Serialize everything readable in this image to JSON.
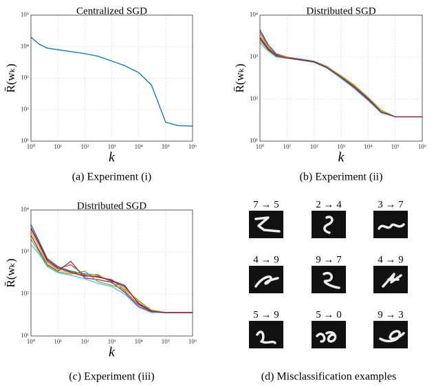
{
  "chart_data": [
    {
      "type": "line",
      "title": "Centralized SGD",
      "caption": "(a) Experiment (i)",
      "xlabel": "k",
      "ylabel": "R̄(wₖ)",
      "log_x": true,
      "log_y": true,
      "grid": true,
      "xlim": [
        1,
        1000000
      ],
      "ylim": [
        10,
        100000
      ],
      "xticks": [
        {
          "value": 1,
          "label": "10⁰"
        },
        {
          "value": 10,
          "label": "10¹"
        },
        {
          "value": 100,
          "label": "10²"
        },
        {
          "value": 1000,
          "label": "10³"
        },
        {
          "value": 10000,
          "label": "10⁴"
        },
        {
          "value": 100000,
          "label": "10⁵"
        },
        {
          "value": 1000000,
          "label": "10⁶"
        }
      ],
      "yticks": [
        {
          "value": 10,
          "label": "10¹"
        },
        {
          "value": 100,
          "label": "10²"
        },
        {
          "value": 1000,
          "label": "10³"
        },
        {
          "value": 10000,
          "label": "10⁴"
        },
        {
          "value": 100000,
          "label": "10⁵"
        }
      ],
      "x": [
        1,
        2,
        4,
        10,
        30,
        100,
        300,
        1000,
        3000,
        10000,
        30000,
        100000,
        300000,
        1000000
      ],
      "color": "#0072bd",
      "values": [
        20000,
        12000,
        9000,
        8000,
        7000,
        6000,
        5000,
        3500,
        2500,
        1500,
        600,
        40,
        31,
        30
      ]
    },
    {
      "type": "line",
      "title": "Distributed SGD",
      "caption": "(b) Experiment (ii)",
      "xlabel": "k",
      "ylabel": "R̄(wₖ)",
      "log_x": true,
      "log_y": true,
      "grid": true,
      "xlim": [
        1,
        1000000
      ],
      "ylim": [
        10,
        10000
      ],
      "xticks": [
        {
          "value": 1,
          "label": "10⁰"
        },
        {
          "value": 10,
          "label": "10¹"
        },
        {
          "value": 100,
          "label": "10²"
        },
        {
          "value": 1000,
          "label": "10³"
        },
        {
          "value": 10000,
          "label": "10⁴"
        },
        {
          "value": 100000,
          "label": "10⁵"
        },
        {
          "value": 1000000,
          "label": "10⁶"
        }
      ],
      "yticks": [
        {
          "value": 10,
          "label": "10¹"
        },
        {
          "value": 100,
          "label": "10²"
        },
        {
          "value": 1000,
          "label": "10³"
        },
        {
          "value": 10000,
          "label": "10⁴"
        }
      ],
      "x": [
        1,
        2,
        4,
        10,
        30,
        100,
        300,
        1000,
        3000,
        10000,
        30000,
        100000,
        300000,
        1000000
      ],
      "series": [
        {
          "color": "#0072bd",
          "values": [
            4500,
            2000,
            1200,
            1000,
            900,
            800,
            600,
            350,
            200,
            100,
            50,
            38,
            38,
            38
          ]
        },
        {
          "color": "#d95319",
          "values": [
            4000,
            1800,
            1150,
            1000,
            880,
            780,
            580,
            330,
            190,
            95,
            48,
            38,
            38,
            38
          ]
        },
        {
          "color": "#edb120",
          "values": [
            3500,
            1700,
            1100,
            980,
            870,
            770,
            570,
            340,
            210,
            105,
            52,
            38,
            38,
            38
          ]
        },
        {
          "color": "#7e2f8e",
          "values": [
            3000,
            1600,
            1100,
            950,
            860,
            760,
            560,
            320,
            185,
            98,
            49,
            38,
            38,
            38
          ]
        },
        {
          "color": "#77ac30",
          "values": [
            2500,
            1500,
            1050,
            970,
            880,
            790,
            590,
            360,
            220,
            110,
            55,
            38,
            38,
            38
          ]
        },
        {
          "color": "#4dbeee",
          "values": [
            2200,
            1400,
            1000,
            940,
            850,
            750,
            550,
            310,
            180,
            92,
            47,
            38,
            38,
            38
          ]
        },
        {
          "color": "#a2142f",
          "values": [
            2800,
            1550,
            1080,
            960,
            870,
            770,
            560,
            335,
            200,
            102,
            50,
            38,
            38,
            38
          ]
        }
      ]
    },
    {
      "type": "line",
      "title": "Distributed SGD",
      "caption": "(c) Experiment (iii)",
      "xlabel": "k",
      "ylabel": "R̄(wₖ)",
      "log_x": true,
      "log_y": true,
      "grid": true,
      "xlim": [
        1,
        1000000
      ],
      "ylim": [
        10,
        10000
      ],
      "xticks": [
        {
          "value": 1,
          "label": "10⁰"
        },
        {
          "value": 10,
          "label": "10¹"
        },
        {
          "value": 100,
          "label": "10²"
        },
        {
          "value": 1000,
          "label": "10³"
        },
        {
          "value": 10000,
          "label": "10⁴"
        },
        {
          "value": 100000,
          "label": "10⁵"
        },
        {
          "value": 1000000,
          "label": "10⁶"
        }
      ],
      "yticks": [
        {
          "value": 10,
          "label": "10¹"
        },
        {
          "value": 100,
          "label": "10²"
        },
        {
          "value": 1000,
          "label": "10³"
        },
        {
          "value": 10000,
          "label": "10⁴"
        }
      ],
      "x": [
        1,
        2,
        4,
        10,
        30,
        100,
        300,
        1000,
        3000,
        10000,
        30000,
        100000,
        300000,
        1000000
      ],
      "series": [
        {
          "color": "#0072bd",
          "values": [
            4500,
            1800,
            700,
            450,
            350,
            300,
            280,
            200,
            150,
            60,
            40,
            36,
            36,
            36
          ]
        },
        {
          "color": "#d95319",
          "values": [
            3500,
            1500,
            600,
            400,
            500,
            280,
            250,
            220,
            120,
            55,
            38,
            36,
            36,
            36
          ]
        },
        {
          "color": "#edb120",
          "values": [
            3000,
            1300,
            550,
            380,
            320,
            260,
            300,
            180,
            140,
            65,
            42,
            36,
            36,
            36
          ]
        },
        {
          "color": "#7e2f8e",
          "values": [
            2500,
            1100,
            500,
            350,
            600,
            240,
            220,
            190,
            110,
            50,
            37,
            36,
            36,
            36
          ]
        },
        {
          "color": "#77ac30",
          "values": [
            2000,
            1000,
            480,
            340,
            300,
            350,
            200,
            160,
            130,
            70,
            40,
            36,
            36,
            36
          ]
        },
        {
          "color": "#4dbeee",
          "values": [
            1500,
            900,
            450,
            320,
            280,
            230,
            180,
            150,
            100,
            48,
            36,
            36,
            36,
            36
          ]
        },
        {
          "color": "#a2142f",
          "values": [
            3800,
            1600,
            650,
            420,
            330,
            270,
            260,
            210,
            160,
            58,
            39,
            36,
            36,
            36
          ]
        }
      ]
    }
  ],
  "panel_d": {
    "caption": "(d) Misclassification examples",
    "examples": [
      "7 → 5",
      "2 → 4",
      "3 → 7",
      "4 → 9",
      "9 → 7",
      "4 → 9",
      "5 → 9",
      "5 → 0",
      "9 → 3"
    ]
  }
}
